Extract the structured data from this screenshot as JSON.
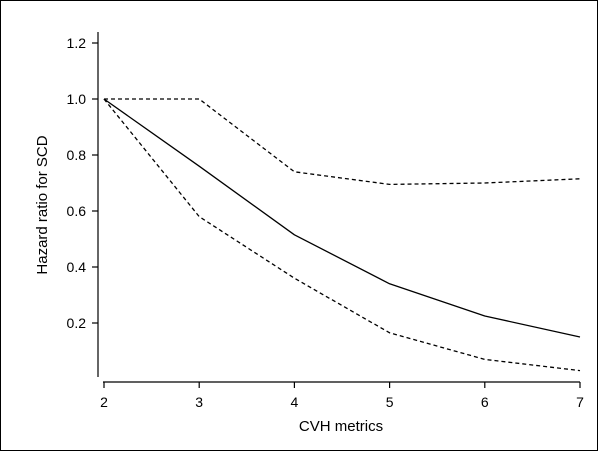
{
  "chart_data": {
    "type": "line",
    "title": "",
    "xlabel": "CVH metrics",
    "ylabel": "Hazard ratio for SCD",
    "xlim": [
      2,
      7
    ],
    "ylim": [
      0.02,
      1.25
    ],
    "x_ticks": [
      2,
      3,
      4,
      5,
      6,
      7
    ],
    "x_tick_labels": [
      "2",
      "3",
      "4",
      "5",
      "6",
      "7"
    ],
    "y_ticks": [
      0.2,
      0.4,
      0.6,
      0.8,
      1.0,
      1.2
    ],
    "y_tick_labels": [
      "0.2",
      "0.4",
      "0.6",
      "0.8",
      "1.0",
      "1.2"
    ],
    "grid": false,
    "legend": "none",
    "series": [
      {
        "style": "solid",
        "color": "#000000",
        "x": [
          2,
          3,
          4,
          5,
          6,
          7
        ],
        "values": [
          1.0,
          0.76,
          0.515,
          0.34,
          0.225,
          0.15
        ]
      },
      {
        "style": "dashed",
        "color": "#000000",
        "x": [
          2,
          3,
          4,
          5,
          6,
          7
        ],
        "values": [
          1.0,
          1.0,
          0.74,
          0.695,
          0.7,
          0.715
        ]
      },
      {
        "style": "dashed",
        "color": "#000000",
        "x": [
          2,
          3,
          4,
          5,
          6,
          7
        ],
        "values": [
          1.0,
          0.58,
          0.36,
          0.165,
          0.07,
          0.03
        ]
      }
    ]
  }
}
